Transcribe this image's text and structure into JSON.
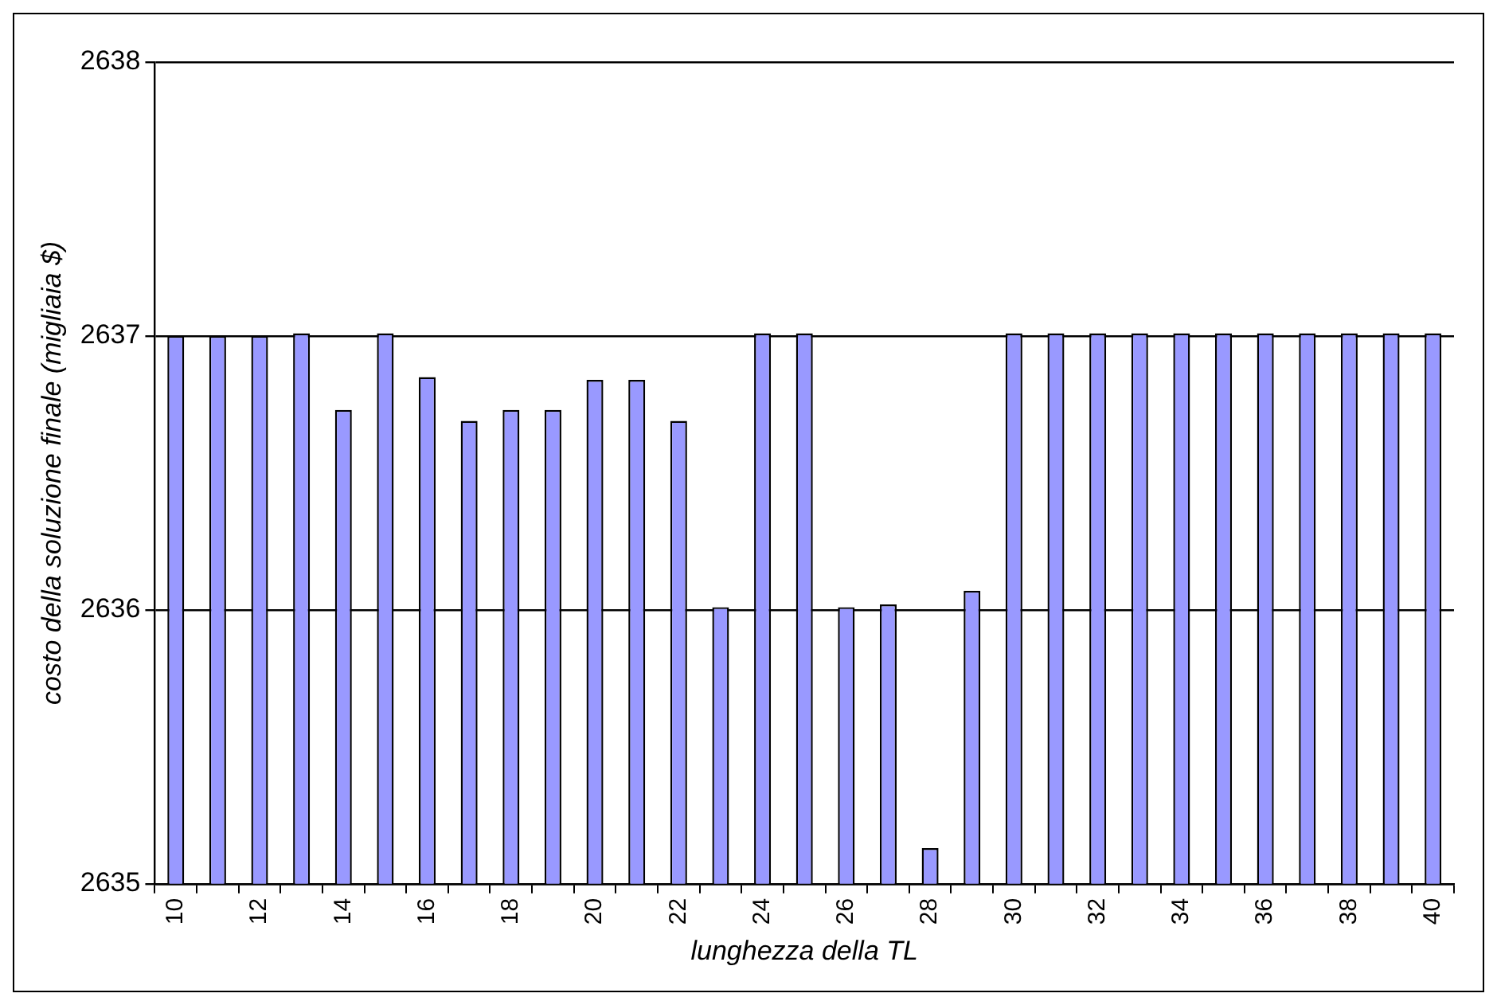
{
  "chart_data": {
    "type": "bar",
    "xlabel": "lunghezza della TL",
    "ylabel": "costo della soluzione finale (migliaia $)",
    "categories": [
      "10",
      null,
      "12",
      null,
      "14",
      null,
      "16",
      null,
      "18",
      null,
      "20",
      null,
      "22",
      null,
      "24",
      null,
      "26",
      null,
      "28",
      null,
      "30",
      null,
      "32",
      null,
      "34",
      null,
      "36",
      null,
      "38",
      null,
      "40"
    ],
    "values": [
      2637.0,
      2637.0,
      2637.0,
      2637.01,
      2636.73,
      2637.01,
      2636.85,
      2636.69,
      2636.73,
      2636.73,
      2636.84,
      2636.84,
      2636.69,
      2636.01,
      2637.01,
      2637.01,
      2636.01,
      2636.02,
      2635.13,
      2636.07,
      2637.01,
      2637.01,
      2637.01,
      2637.01,
      2637.01,
      2637.01,
      2637.01,
      2637.01,
      2637.01,
      2637.01,
      2637.01
    ],
    "color": "#9999ff",
    "ylim": [
      2635,
      2638
    ],
    "yticks": [
      2635,
      2636,
      2637,
      2638
    ],
    "grid": "y",
    "legend": false
  }
}
